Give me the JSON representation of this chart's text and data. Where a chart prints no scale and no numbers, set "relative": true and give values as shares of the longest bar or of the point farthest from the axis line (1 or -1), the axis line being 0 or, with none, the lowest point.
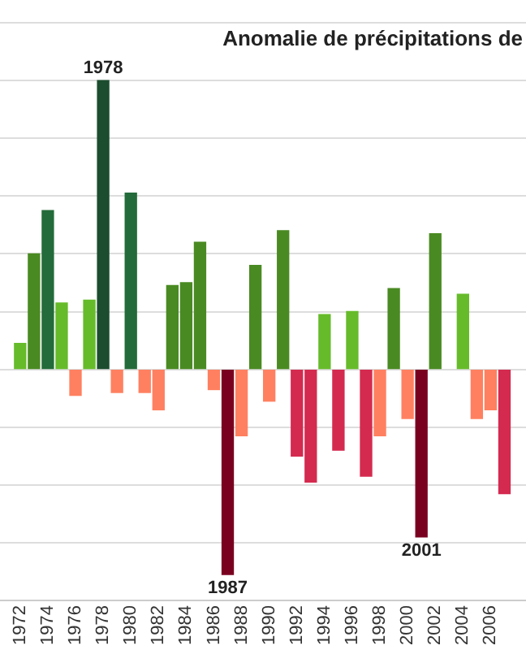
{
  "chart_data": {
    "type": "bar",
    "title": "Anomalie de précipitations de",
    "relative": true,
    "x": [
      1972,
      1973,
      1974,
      1975,
      1976,
      1977,
      1978,
      1979,
      1980,
      1981,
      1982,
      1983,
      1984,
      1985,
      1986,
      1987,
      1988,
      1989,
      1990,
      1991,
      1992,
      1993,
      1994,
      1995,
      1996,
      1997,
      1998,
      1999,
      2000,
      2001,
      2002,
      2003,
      2004,
      2005,
      2006,
      2007
    ],
    "values": [
      0.09,
      0.4,
      0.55,
      0.23,
      -0.09,
      0.24,
      1,
      -0.08,
      0.61,
      -0.08,
      -0.14,
      0.29,
      0.3,
      0.44,
      -0.07,
      -0.71,
      -0.23,
      0.36,
      -0.11,
      0.48,
      -0.3,
      -0.39,
      0.19,
      -0.28,
      0.2,
      -0.37,
      -0.23,
      0.28,
      -0.17,
      -0.58,
      0.47,
      null,
      0.26,
      -0.17,
      -0.14,
      -0.43
    ],
    "colors": [
      "#66bb2a",
      "#4a8a22",
      "#236b3a",
      "#66bb2a",
      "#ff8060",
      "#66bb2a",
      "#1b4d2e",
      "#ff8060",
      "#236b3a",
      "#ff8060",
      "#ff8060",
      "#4a8a22",
      "#4a8a22",
      "#4a8a22",
      "#ff8060",
      "#7a0020",
      "#ff8060",
      "#4a8a22",
      "#ff8060",
      "#4a8a22",
      "#d42a4f",
      "#d42a4f",
      "#66bb2a",
      "#d42a4f",
      "#66bb2a",
      "#d42a4f",
      "#ff8060",
      "#4a8a22",
      "#ff8060",
      "#7a0020",
      "#4a8a22",
      "#ff8060",
      "#66bb2a",
      "#ff8060",
      "#ff8060",
      "#d42a4f"
    ],
    "xlim": [
      1971.6,
      2007.5
    ],
    "xticks": [
      1972,
      1974,
      1976,
      1978,
      1980,
      1982,
      1984,
      1986,
      1988,
      1990,
      1992,
      1994,
      1996,
      1998,
      2000,
      2002,
      2004,
      2006
    ],
    "annotations": [
      {
        "text": "1978",
        "x": 1978,
        "y": 1
      },
      {
        "text": "1987",
        "x": 1987,
        "y": -0.71
      },
      {
        "text": "2001",
        "x": 2001,
        "y": -0.58
      }
    ],
    "grid": "y",
    "legend": false
  }
}
